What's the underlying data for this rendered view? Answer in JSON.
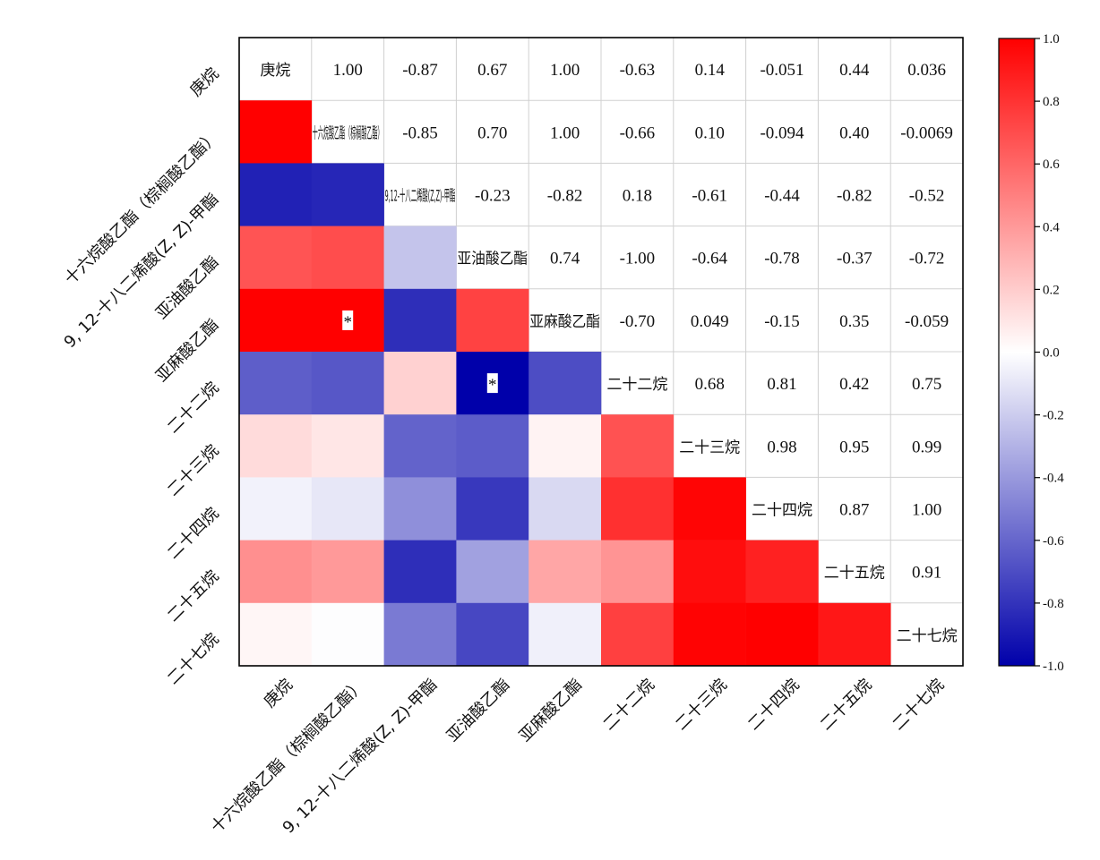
{
  "chart_data": {
    "type": "heatmap",
    "title": "",
    "xlabel": "",
    "ylabel": "",
    "labels": [
      "庚烷",
      "十六烷酸乙酯（棕榈酸乙酯）",
      "9, 12-十八二烯酸(Z, Z)-甲酯",
      "亚油酸乙酯",
      "亚麻酸乙酯",
      "二十二烷",
      "二十三烷",
      "二十四烷",
      "二十五烷",
      "二十七烷"
    ],
    "diagonal_labels": [
      "庚烷",
      "十六烷酸乙酯（棕榈酸乙酯）",
      "9,12-十八二烯酸(Z,Z)-甲酯",
      "亚油酸乙酯",
      "亚麻酸乙酯",
      "二十二烷",
      "二十三烷",
      "二十四烷",
      "二十五烷",
      "二十七烷"
    ],
    "upper_text": [
      [
        null,
        "1.00",
        "-0.87",
        "0.67",
        "1.00",
        "-0.63",
        "0.14",
        "-0.051",
        "0.44",
        "0.036"
      ],
      [
        null,
        null,
        "-0.85",
        "0.70",
        "1.00",
        "-0.66",
        "0.10",
        "-0.094",
        "0.40",
        "-0.0069"
      ],
      [
        null,
        null,
        null,
        "-0.23",
        "-0.82",
        "0.18",
        "-0.61",
        "-0.44",
        "-0.82",
        "-0.52"
      ],
      [
        null,
        null,
        null,
        null,
        "0.74",
        "-1.00",
        "-0.64",
        "-0.78",
        "-0.37",
        "-0.72"
      ],
      [
        null,
        null,
        null,
        null,
        null,
        "-0.70",
        "0.049",
        "-0.15",
        "0.35",
        "-0.059"
      ],
      [
        null,
        null,
        null,
        null,
        null,
        null,
        "0.68",
        "0.81",
        "0.42",
        "0.75"
      ],
      [
        null,
        null,
        null,
        null,
        null,
        null,
        null,
        "0.98",
        "0.95",
        "0.99"
      ],
      [
        null,
        null,
        null,
        null,
        null,
        null,
        null,
        null,
        "0.87",
        "1.00"
      ],
      [
        null,
        null,
        null,
        null,
        null,
        null,
        null,
        null,
        null,
        "0.91"
      ],
      [
        null,
        null,
        null,
        null,
        null,
        null,
        null,
        null,
        null,
        null
      ]
    ],
    "matrix": [
      [
        1,
        1.0,
        -0.87,
        0.67,
        1.0,
        -0.63,
        0.14,
        -0.051,
        0.44,
        0.036
      ],
      [
        1.0,
        1,
        -0.85,
        0.7,
        1.0,
        -0.66,
        0.1,
        -0.094,
        0.4,
        -0.0069
      ],
      [
        -0.87,
        -0.85,
        1,
        -0.23,
        -0.82,
        0.18,
        -0.61,
        -0.44,
        -0.82,
        -0.52
      ],
      [
        0.67,
        0.7,
        -0.23,
        1,
        0.74,
        -1.0,
        -0.64,
        -0.78,
        -0.37,
        -0.72
      ],
      [
        1.0,
        1.0,
        -0.82,
        0.74,
        1,
        -0.7,
        0.049,
        -0.15,
        0.35,
        -0.059
      ],
      [
        -0.63,
        -0.66,
        0.18,
        -1.0,
        -0.7,
        1,
        0.68,
        0.81,
        0.42,
        0.75
      ],
      [
        0.14,
        0.1,
        -0.61,
        -0.64,
        0.049,
        0.68,
        1,
        0.98,
        0.95,
        0.99
      ],
      [
        -0.051,
        -0.094,
        -0.44,
        -0.78,
        -0.15,
        0.81,
        0.98,
        1,
        0.87,
        1.0
      ],
      [
        0.44,
        0.4,
        -0.82,
        -0.37,
        0.35,
        0.42,
        0.95,
        0.87,
        1,
        0.91
      ],
      [
        0.036,
        -0.0069,
        -0.52,
        -0.72,
        -0.059,
        0.75,
        0.99,
        1.0,
        0.91,
        1
      ]
    ],
    "significance": [
      {
        "row": 4,
        "col": 1,
        "mark": "*"
      },
      {
        "row": 5,
        "col": 3,
        "mark": "*"
      }
    ],
    "colorbar": {
      "range": [
        -1.0,
        1.0
      ],
      "ticks": [
        "1.0",
        "0.8",
        "0.6",
        "0.4",
        "0.2",
        "0.0",
        "-0.2",
        "-0.4",
        "-0.6",
        "-0.8",
        "-1.0"
      ],
      "colors": {
        "negative": "#0000aa",
        "zero": "#ffffff",
        "positive": "#ff0000"
      }
    },
    "grid": true
  }
}
